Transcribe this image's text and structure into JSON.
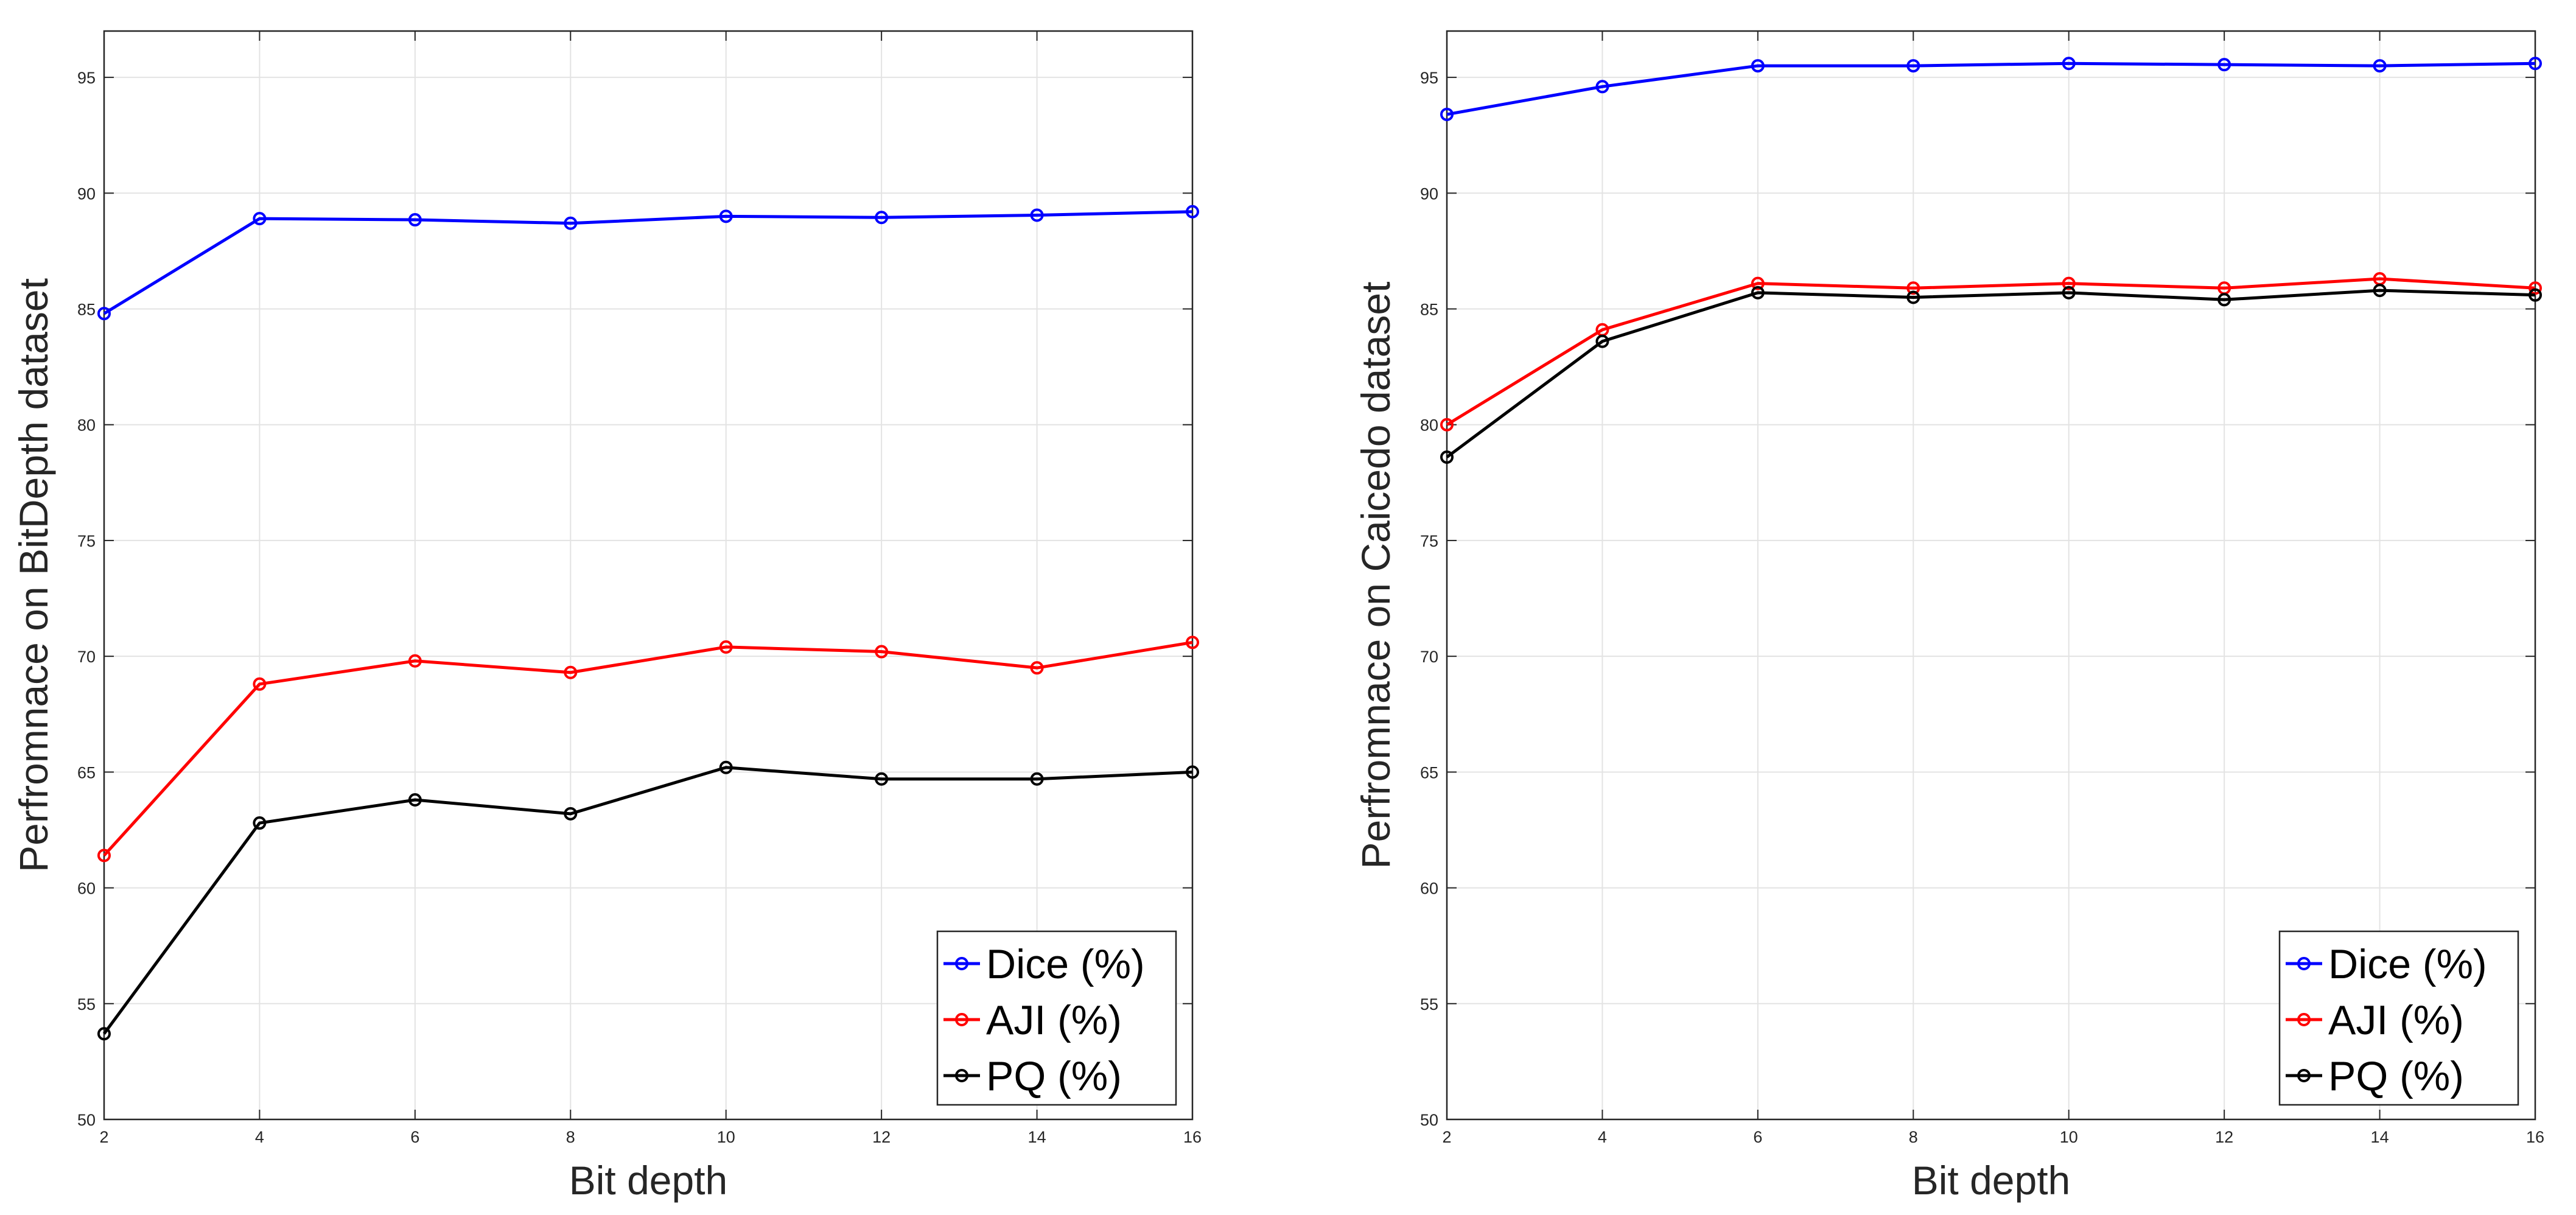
{
  "chart_data": [
    {
      "type": "line",
      "title": "",
      "xlabel": "Bit depth",
      "ylabel": "Perfromnace on BitDepth dataset",
      "x": [
        2,
        4,
        6,
        8,
        10,
        12,
        14,
        16
      ],
      "xlim": [
        2,
        16
      ],
      "ylim": [
        50,
        97
      ],
      "xticks": [
        2,
        4,
        6,
        8,
        10,
        12,
        14,
        16
      ],
      "yticks": [
        50,
        55,
        60,
        65,
        70,
        75,
        80,
        85,
        90,
        95
      ],
      "grid": true,
      "legend_position": "bottom-right",
      "series": [
        {
          "name": "Dice (%)",
          "color": "#0000ff",
          "values": [
            84.8,
            88.9,
            88.85,
            88.7,
            89.0,
            88.95,
            89.05,
            89.2
          ]
        },
        {
          "name": "AJI (%)",
          "color": "#ff0000",
          "values": [
            61.4,
            68.8,
            69.8,
            69.3,
            70.4,
            70.2,
            69.5,
            70.6
          ]
        },
        {
          "name": "PQ (%)",
          "color": "#000000",
          "values": [
            53.7,
            62.8,
            63.8,
            63.2,
            65.2,
            64.7,
            64.7,
            65.0
          ]
        }
      ]
    },
    {
      "type": "line",
      "title": "",
      "xlabel": "Bit depth",
      "ylabel": "Perfromnace on Caicedo dataset",
      "x": [
        2,
        4,
        6,
        8,
        10,
        12,
        14,
        16
      ],
      "xlim": [
        2,
        16
      ],
      "ylim": [
        50,
        97
      ],
      "xticks": [
        2,
        4,
        6,
        8,
        10,
        12,
        14,
        16
      ],
      "yticks": [
        50,
        55,
        60,
        65,
        70,
        75,
        80,
        85,
        90,
        95
      ],
      "grid": true,
      "legend_position": "bottom-right",
      "series": [
        {
          "name": "Dice (%)",
          "color": "#0000ff",
          "values": [
            93.4,
            94.6,
            95.5,
            95.5,
            95.6,
            95.55,
            95.5,
            95.6
          ]
        },
        {
          "name": "AJI (%)",
          "color": "#ff0000",
          "values": [
            80.0,
            84.1,
            86.1,
            85.9,
            86.1,
            85.9,
            86.3,
            85.9
          ]
        },
        {
          "name": "PQ (%)",
          "color": "#000000",
          "values": [
            78.6,
            83.6,
            85.7,
            85.5,
            85.7,
            85.4,
            85.8,
            85.6
          ]
        }
      ]
    }
  ]
}
